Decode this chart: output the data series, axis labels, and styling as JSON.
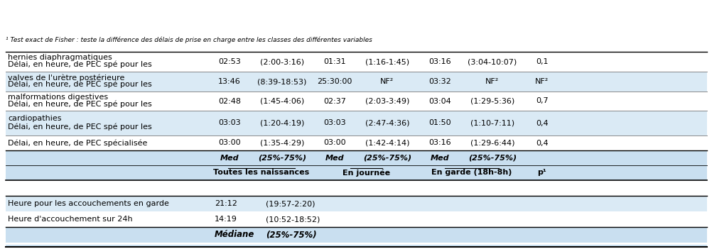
{
  "header_bg": "#c9dff0",
  "alt_row_bg": "#daeaf5",
  "white_bg": "#ffffff",
  "top_section": {
    "col_mediane": "Médiane",
    "col_pct": "(25%-75%)",
    "rows": [
      {
        "label": "Heure d'accouchement sur 24h",
        "med": "14:19",
        "pct": "(10:52-18:52)"
      },
      {
        "label": "Heure pour les accouchements en garde",
        "med": "21:12",
        "pct": "(19:57-2:20)"
      }
    ]
  },
  "bottom_section": {
    "group_headers": [
      "Toutes les naissances",
      "En journée",
      "En garde (18h-8h)",
      "p¹"
    ],
    "col_headers": [
      "Med",
      "(25%-75%)",
      "Med",
      "(25%-75%)",
      "Med",
      "(25%-75%)"
    ],
    "rows": [
      {
        "label": "Délai, en heure, de PEC spécialisée",
        "vals": [
          "03:00",
          "(1:35-4:29)",
          "03:00",
          "(1:42-4:14)",
          "03:16",
          "(1:29-6:44)",
          "0,4"
        ]
      },
      {
        "label": "Délai, en heure, de PEC spé pour les\ncardiopathies",
        "vals": [
          "03:03",
          "(1:20-4:19)",
          "03:03",
          "(2:47-4:36)",
          "01:50",
          "(1:10-7:11)",
          "0,4"
        ]
      },
      {
        "label": "Délai, en heure, de PEC spé pour les\nmalformations digestives",
        "vals": [
          "02:48",
          "(1:45-4:06)",
          "02:37",
          "(2:03-3:49)",
          "03:04",
          "(1:29-5:36)",
          "0,7"
        ]
      },
      {
        "label": "Délai, en heure, de PEC spé pour les\nvalves de l'urètre postérieure",
        "vals": [
          "13:46",
          "(8:39-18:53)",
          "25:30:00",
          "NF²",
          "03:32",
          "NF²",
          "NF²"
        ]
      },
      {
        "label": "Délai, en heure, de PEC spé pour les\nhernies diaphragmatiques",
        "vals": [
          "02:53",
          "(2:00-3:16)",
          "01:31",
          "(1:16-1:45)",
          "03:16",
          "(3:04-10:07)",
          "0,1"
        ]
      }
    ]
  },
  "footnote": "¹ Test exact de Fisher : teste la différence des délais de prise en charge entre les classes des différentes variables"
}
